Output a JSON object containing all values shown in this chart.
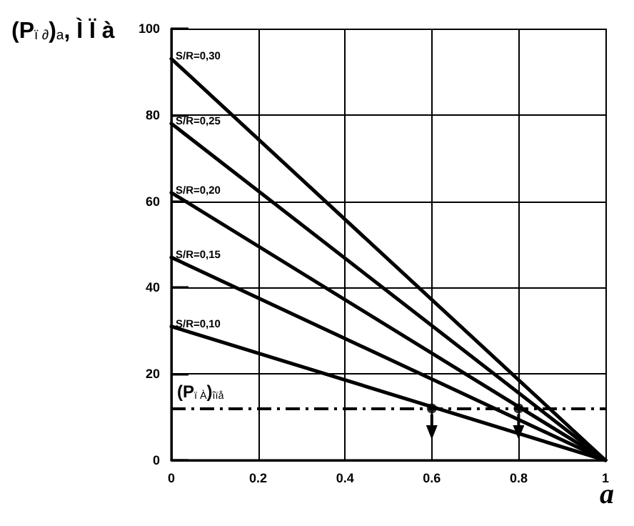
{
  "chart_data": {
    "type": "line",
    "ylabel": "(P$_{ï ∂}$)$_{a}$, Ì Ï à",
    "xlabel": "a",
    "xlim": [
      0,
      1
    ],
    "xticks": [
      0,
      0.2,
      0.4,
      0.6,
      0.8,
      1
    ],
    "ylim": [
      0,
      100
    ],
    "yticks": [
      0,
      20,
      40,
      60,
      80,
      100
    ],
    "grid": true,
    "legend": false,
    "marker": "none",
    "line_style": "solid",
    "series": [
      {
        "name": "S/R=0,30",
        "color": "#000000",
        "x": [
          0,
          1
        ],
        "values": [
          93,
          0
        ]
      },
      {
        "name": "S/R=0,25",
        "color": "#000000",
        "x": [
          0,
          1
        ],
        "values": [
          78,
          0
        ]
      },
      {
        "name": "S/R=0,20",
        "color": "#000000",
        "x": [
          0,
          1
        ],
        "values": [
          62,
          0
        ]
      },
      {
        "name": "S/R=0,15",
        "color": "#000000",
        "x": [
          0,
          1
        ],
        "values": [
          47,
          0
        ]
      },
      {
        "name": "S/R=0,10",
        "color": "#000000",
        "x": [
          0,
          1
        ],
        "values": [
          31,
          0
        ]
      },
      {
        "type": "scatter",
        "marker": "circle",
        "color": "#000000",
        "x": [
          0.6,
          0.8
        ],
        "values": [
          12,
          12
        ]
      }
    ],
    "ref_lines": [
      {
        "axis": "y",
        "value": 12,
        "label": "(P$_{ï À}$)$_{îïå}$",
        "color": "#000000",
        "line_style": "dashdot"
      }
    ]
  }
}
